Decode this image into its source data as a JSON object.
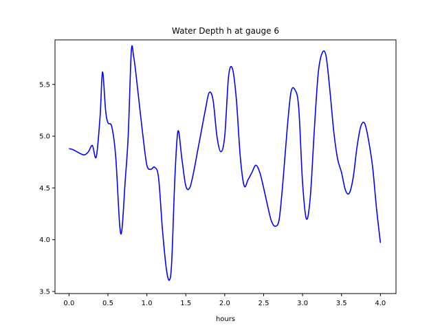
{
  "chart_data": {
    "type": "line",
    "title": "Water Depth h at gauge 6",
    "xlabel": "hours",
    "ylabel": "",
    "xlim": [
      -0.18,
      4.2
    ],
    "ylim": [
      3.48,
      5.93
    ],
    "xticks": [
      0.0,
      0.5,
      1.0,
      1.5,
      2.0,
      2.5,
      3.0,
      3.5,
      4.0
    ],
    "xtick_labels": [
      "0.0",
      "0.5",
      "1.0",
      "1.5",
      "2.0",
      "2.5",
      "3.0",
      "3.5",
      "4.0"
    ],
    "yticks": [
      3.5,
      4.0,
      4.5,
      5.0,
      5.5
    ],
    "ytick_labels": [
      "3.5",
      "4.0",
      "4.5",
      "5.0",
      "5.5"
    ],
    "grid": false,
    "series": [
      {
        "color": "#0000ff",
        "x": [
          0.0,
          0.05,
          0.1,
          0.15,
          0.2,
          0.25,
          0.3,
          0.35,
          0.4,
          0.43,
          0.47,
          0.5,
          0.55,
          0.6,
          0.65,
          0.68,
          0.72,
          0.76,
          0.8,
          0.83,
          0.86,
          0.9,
          0.95,
          1.0,
          1.05,
          1.1,
          1.15,
          1.2,
          1.25,
          1.29,
          1.32,
          1.36,
          1.4,
          1.45,
          1.5,
          1.55,
          1.6,
          1.65,
          1.7,
          1.75,
          1.8,
          1.85,
          1.9,
          1.95,
          2.0,
          2.05,
          2.1,
          2.15,
          2.2,
          2.25,
          2.3,
          2.35,
          2.4,
          2.45,
          2.5,
          2.55,
          2.6,
          2.65,
          2.7,
          2.75,
          2.8,
          2.85,
          2.9,
          2.95,
          3.0,
          3.05,
          3.1,
          3.15,
          3.2,
          3.25,
          3.3,
          3.35,
          3.4,
          3.45,
          3.5,
          3.55,
          3.6,
          3.65,
          3.7,
          3.75,
          3.8,
          3.85,
          3.9,
          3.95,
          4.0
        ],
        "y": [
          4.88,
          4.87,
          4.85,
          4.83,
          4.82,
          4.85,
          4.91,
          4.8,
          5.2,
          5.62,
          5.25,
          5.13,
          5.09,
          4.8,
          4.15,
          4.1,
          4.55,
          5.0,
          5.82,
          5.77,
          5.6,
          5.33,
          5.0,
          4.72,
          4.68,
          4.7,
          4.6,
          4.1,
          3.72,
          3.61,
          3.8,
          4.6,
          5.05,
          4.78,
          4.52,
          4.5,
          4.65,
          4.85,
          5.05,
          5.25,
          5.42,
          5.35,
          5.0,
          4.85,
          5.0,
          5.58,
          5.65,
          5.35,
          4.8,
          4.52,
          4.58,
          4.65,
          4.72,
          4.65,
          4.5,
          4.33,
          4.18,
          4.13,
          4.2,
          4.58,
          5.05,
          5.42,
          5.45,
          5.28,
          4.55,
          4.2,
          4.42,
          5.05,
          5.6,
          5.8,
          5.78,
          5.45,
          5.05,
          4.78,
          4.65,
          4.48,
          4.45,
          4.6,
          4.9,
          5.1,
          5.12,
          4.95,
          4.7,
          4.3,
          3.97
        ]
      }
    ]
  }
}
